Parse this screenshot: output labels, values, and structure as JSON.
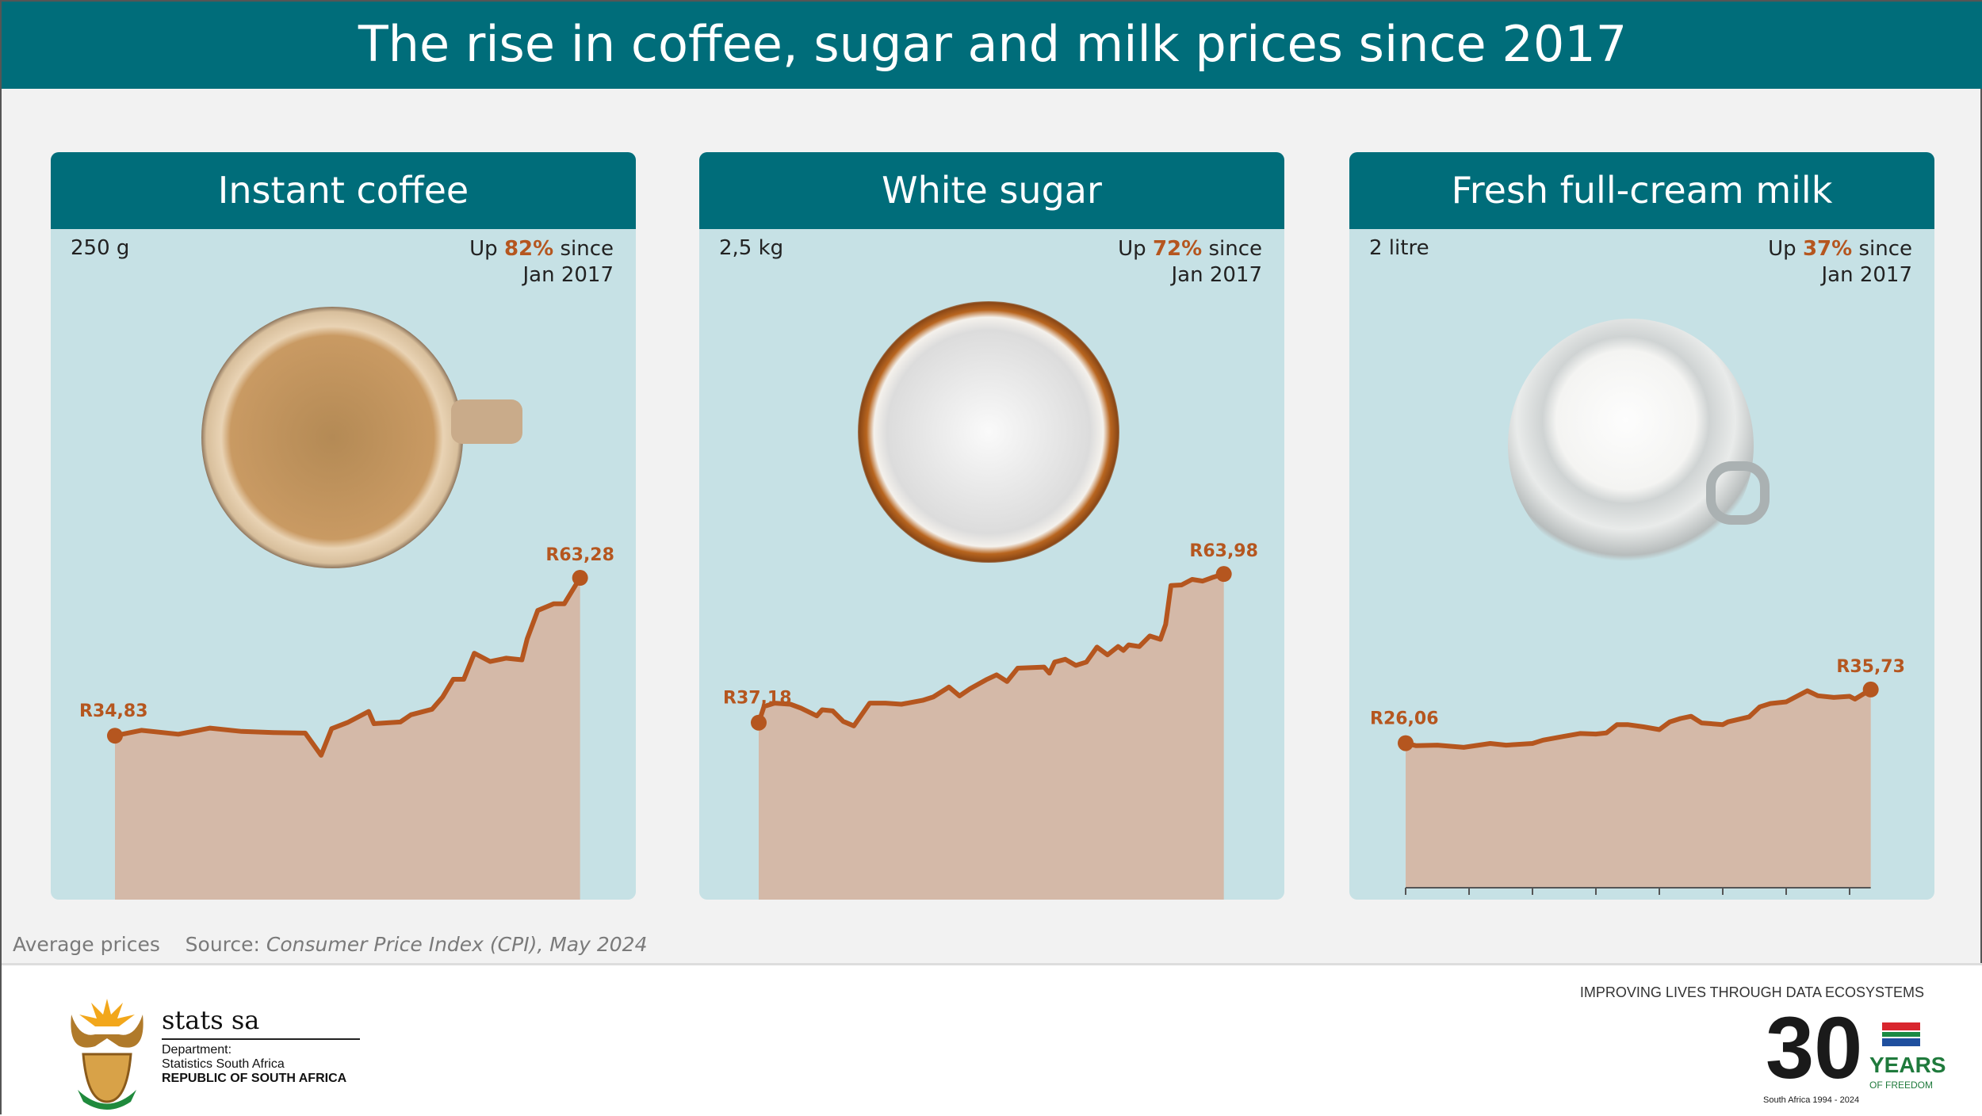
{
  "title": "The rise in coffee, sugar and milk prices since 2017",
  "panels": [
    {
      "name": "Instant coffee",
      "size": "250 g",
      "up_prefix": "Up",
      "up_pct": "82%",
      "up_suffix": "since",
      "up_since": "Jan 2017",
      "start_label": "R34,83",
      "end_label": "R63,28",
      "image": "coffee-cup"
    },
    {
      "name": "White sugar",
      "size": "2,5 kg",
      "up_prefix": "Up",
      "up_pct": "72%",
      "up_suffix": "since",
      "up_since": "Jan 2017",
      "start_label": "R37,18",
      "end_label": "R63,98",
      "image": "sugar-bowl"
    },
    {
      "name": "Fresh full-cream milk",
      "size": "2 litre",
      "up_prefix": "Up",
      "up_pct": "37%",
      "up_suffix": "since",
      "up_since": "Jan 2017",
      "start_label": "R26,06",
      "end_label": "R35,73",
      "image": "milk-jug"
    }
  ],
  "colors": {
    "header": "#006d7a",
    "panel_bg": "#c6e1e5",
    "line": "#b5561f",
    "area": "#d4b9a8"
  },
  "chart_data": [
    {
      "type": "area",
      "title": "Instant coffee",
      "ylim": [
        0,
        64
      ],
      "xticks": [
        "2017",
        "2018",
        "2019",
        "2020",
        "2021",
        "2022",
        "2023",
        "2024"
      ],
      "x": [
        "2017-01",
        "2017-06",
        "2018-01",
        "2018-07",
        "2019-01",
        "2019-07",
        "2020-01",
        "2020-04",
        "2020-06",
        "2020-09",
        "2021-01",
        "2021-02",
        "2021-07",
        "2021-09",
        "2022-01",
        "2022-03",
        "2022-05",
        "2022-07",
        "2022-09",
        "2022-12",
        "2023-03",
        "2023-06",
        "2023-07",
        "2023-09",
        "2023-12",
        "2024-02",
        "2024-05"
      ],
      "y": [
        34.83,
        35.8,
        35.1,
        36.2,
        35.6,
        35.4,
        35.3,
        31.3,
        36.1,
        37.2,
        39.2,
        37.0,
        37.3,
        38.6,
        39.6,
        41.8,
        45.0,
        45.0,
        49.7,
        48.2,
        48.8,
        48.5,
        52.3,
        57.4,
        58.6,
        58.6,
        63.28
      ]
    },
    {
      "type": "area",
      "title": "White sugar",
      "ylim": [
        0,
        64
      ],
      "xticks": [
        "2017",
        "2018",
        "2019",
        "2020",
        "2021",
        "2022",
        "2023",
        "2024"
      ],
      "x": [
        "2017-01",
        "2017-02",
        "2017-04",
        "2017-07",
        "2017-09",
        "2017-12",
        "2018-01",
        "2018-03",
        "2018-05",
        "2018-07",
        "2018-10",
        "2019-01",
        "2019-04",
        "2019-08",
        "2019-10",
        "2020-01",
        "2020-03",
        "2020-05",
        "2020-08",
        "2020-10",
        "2020-12",
        "2021-02",
        "2021-07",
        "2021-08",
        "2021-09",
        "2021-11",
        "2022-01",
        "2022-03",
        "2022-05",
        "2022-07",
        "2022-09",
        "2022-10",
        "2022-11",
        "2023-01",
        "2023-03",
        "2023-05",
        "2023-06",
        "2023-07",
        "2023-09",
        "2023-11",
        "2024-01",
        "2024-03",
        "2024-05"
      ],
      "y": [
        37.18,
        40.1,
        40.7,
        40.5,
        39.8,
        38.4,
        39.5,
        39.3,
        37.4,
        36.6,
        40.7,
        40.7,
        40.5,
        41.2,
        41.8,
        43.6,
        42.0,
        43.3,
        44.9,
        45.8,
        44.6,
        47.0,
        47.2,
        46.1,
        48.1,
        48.6,
        47.5,
        48.1,
        50.8,
        49.4,
        50.9,
        50.2,
        51.2,
        50.9,
        52.8,
        52.2,
        54.9,
        61.9,
        62.0,
        63.0,
        62.7,
        63.4,
        63.98
      ]
    },
    {
      "type": "area",
      "title": "Fresh full-cream milk",
      "ylim": [
        0,
        64
      ],
      "xticks": [
        "2017",
        "2018",
        "2019",
        "2020",
        "2021",
        "2022",
        "2023",
        "2024"
      ],
      "x": [
        "2017-01",
        "2017-03",
        "2017-07",
        "2017-12",
        "2018-05",
        "2018-08",
        "2019-01",
        "2019-03",
        "2019-07",
        "2019-10",
        "2020-01",
        "2020-03",
        "2020-05",
        "2020-07",
        "2020-10",
        "2021-01",
        "2021-03",
        "2021-05",
        "2021-07",
        "2021-09",
        "2022-01",
        "2022-02",
        "2022-06",
        "2022-08",
        "2022-10",
        "2023-01",
        "2023-05",
        "2023-07",
        "2023-10",
        "2024-01",
        "2024-02",
        "2024-05"
      ],
      "y": [
        26.06,
        25.6,
        25.7,
        25.3,
        26.0,
        25.7,
        26.0,
        26.6,
        27.3,
        27.8,
        27.7,
        27.9,
        29.4,
        29.4,
        29.0,
        28.5,
        29.9,
        30.5,
        30.9,
        29.7,
        29.4,
        29.9,
        30.8,
        32.6,
        33.2,
        33.5,
        35.5,
        34.6,
        34.3,
        34.5,
        34.0,
        35.73
      ]
    }
  ],
  "source": {
    "note": "Average prices",
    "label": "Source:",
    "text": "Consumer Price Index (CPI), May 2024"
  },
  "footer": {
    "brand": "stats sa",
    "dept": "Department:",
    "dept_name": "Statistics South Africa",
    "country": "REPUBLIC OF SOUTH AFRICA",
    "tagline": "IMPROVING LIVES THROUGH DATA ECOSYSTEMS",
    "logo30_years": "YEARS",
    "logo30_freedom": "OF FREEDOM",
    "logo30_number": "30",
    "logo30_ring": "South Africa 1994 - 2024"
  }
}
